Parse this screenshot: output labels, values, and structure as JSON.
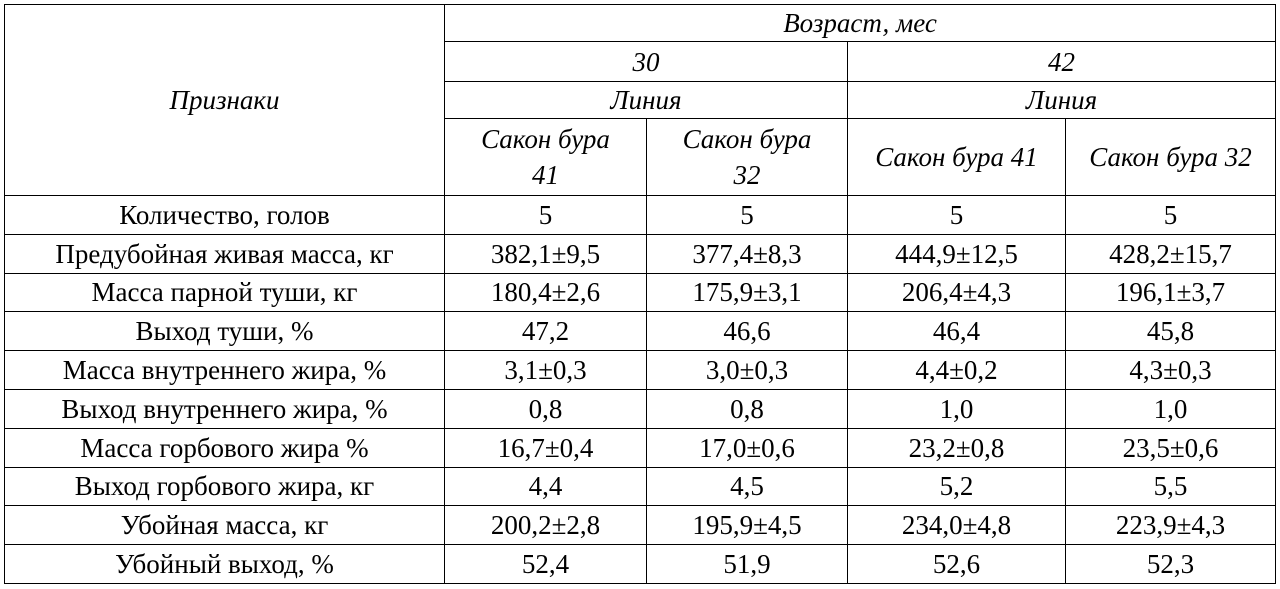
{
  "table": {
    "header": {
      "feature": "Признаки",
      "age": "Возраст, мес",
      "ages": [
        "30",
        "42"
      ],
      "line": [
        "Линия",
        "Линия"
      ],
      "lines": [
        "Сакон бура 41",
        "Сакон бура 32",
        "Сакон бура 41",
        "Сакон бура 32"
      ]
    },
    "rows": [
      {
        "label": "Количество, голов",
        "values": [
          "5",
          "5",
          "5",
          "5"
        ]
      },
      {
        "label": "Предубойная живая масса, кг",
        "values": [
          "382,1±9,5",
          "377,4±8,3",
          "444,9±12,5",
          "428,2±15,7"
        ]
      },
      {
        "label": "Масса парной туши, кг",
        "values": [
          "180,4±2,6",
          "175,9±3,1",
          "206,4±4,3",
          "196,1±3,7"
        ]
      },
      {
        "label": "Выход туши, %",
        "values": [
          "47,2",
          "46,6",
          "46,4",
          "45,8"
        ]
      },
      {
        "label": "Масса внутреннего жира, %",
        "values": [
          "3,1±0,3",
          "3,0±0,3",
          "4,4±0,2",
          "4,3±0,3"
        ]
      },
      {
        "label": "Выход внутреннего жира, %",
        "values": [
          "0,8",
          "0,8",
          "1,0",
          "1,0"
        ]
      },
      {
        "label": "Масса горбового жира %",
        "values": [
          "16,7±0,4",
          "17,0±0,6",
          "23,2±0,8",
          "23,5±0,6"
        ]
      },
      {
        "label": "Выход горбового жира, кг",
        "values": [
          "4,4",
          "4,5",
          "5,2",
          "5,5"
        ]
      },
      {
        "label": "Убойная масса, кг",
        "values": [
          "200,2±2,8",
          "195,9±4,5",
          "234,0±4,8",
          "223,9±4,3"
        ]
      },
      {
        "label": "Убойный выход, %",
        "values": [
          "52,4",
          "51,9",
          "52,6",
          "52,3"
        ]
      }
    ]
  }
}
